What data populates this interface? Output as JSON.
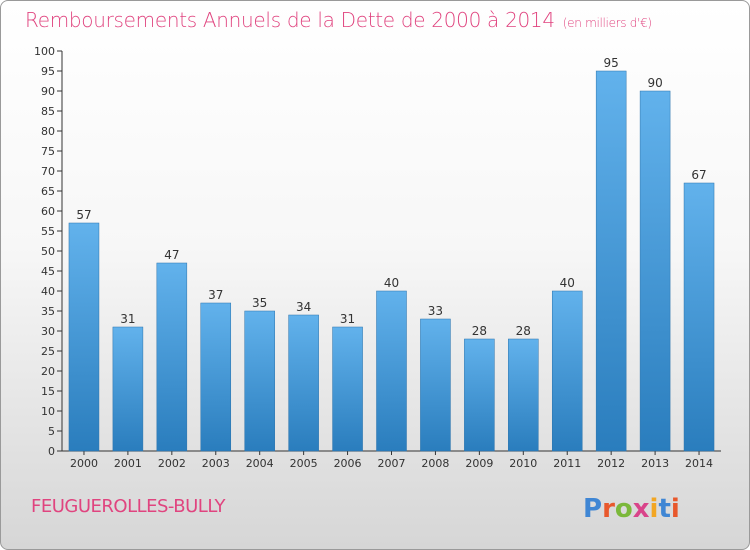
{
  "header": {
    "title": "Remboursements Annuels de la Dette de 2000 à 2014",
    "unit": "(en milliers d'€)"
  },
  "footer": {
    "commune": "FEUGUEROLLES-BULLY",
    "logo_text": "Proxiti"
  },
  "colors": {
    "title": "#e0447f",
    "bar_top": "#62b2ec",
    "bar_bottom": "#2a7dbd",
    "logo_letters": [
      "#3f86d4",
      "#e8582c",
      "#7bb83a",
      "#d9448a",
      "#f2a623",
      "#3f86d4",
      "#e8582c"
    ]
  },
  "chart_data": {
    "type": "bar",
    "categories": [
      "2000",
      "2001",
      "2002",
      "2003",
      "2004",
      "2005",
      "2006",
      "2007",
      "2008",
      "2009",
      "2010",
      "2011",
      "2012",
      "2013",
      "2014"
    ],
    "values": [
      57,
      31,
      47,
      37,
      35,
      34,
      31,
      40,
      33,
      28,
      28,
      40,
      95,
      90,
      67
    ],
    "ylim": [
      0,
      100
    ],
    "ytick_step": 5,
    "xlabel": "",
    "ylabel": "",
    "grid": false,
    "data_labels": true
  }
}
